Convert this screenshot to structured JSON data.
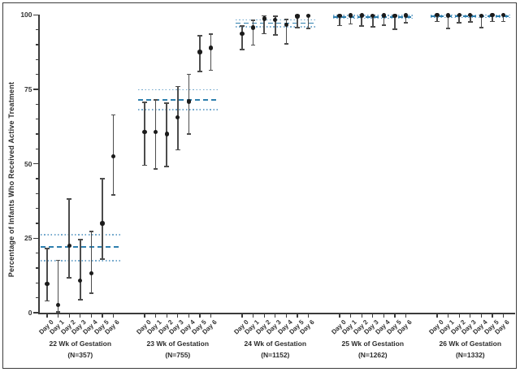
{
  "chart_data": {
    "type": "scatter",
    "title": "",
    "xlabel": "",
    "ylabel": "Percentage of Infants Who Received Active Treatment",
    "ylim": [
      0,
      100
    ],
    "yticks": [
      0,
      25,
      50,
      75,
      100
    ],
    "y_minor_tick_step": 5,
    "grid": false,
    "legend": "none",
    "day_labels": [
      "Day 0",
      "Day 1",
      "Day 2",
      "Day 3",
      "Day 4",
      "Day 5",
      "Day 6"
    ],
    "colors": {
      "overall_dashed": "#2e7fae",
      "ci_dotted": "#74a9cd",
      "errorbar": "#4d4d4d",
      "point": "#1b1b1b",
      "axis": "#3b3b3b"
    },
    "groups": [
      {
        "label": "22 Wk of Gestation",
        "n_label": "(N=357)",
        "overall": 22.0,
        "overall_ci": [
          17.5,
          26.2
        ],
        "values": [
          9.7,
          2.6,
          22.5,
          10.7,
          13.2,
          30.0,
          52.5
        ],
        "ci_low": [
          4.0,
          0.3,
          11.8,
          4.4,
          6.5,
          18.0,
          39.5
        ],
        "ci_high": [
          21.5,
          17.6,
          38.2,
          24.6,
          27.3,
          45.0,
          66.4
        ]
      },
      {
        "label": "23 Wk of Gestation",
        "n_label": "(N=755)",
        "overall": 71.5,
        "overall_ci": [
          68.2,
          74.8
        ],
        "values": [
          60.6,
          60.6,
          60.0,
          65.6,
          70.9,
          87.5,
          88.9
        ],
        "ci_low": [
          49.5,
          48.2,
          49.1,
          54.7,
          60.0,
          81.0,
          81.4
        ],
        "ci_high": [
          70.6,
          71.4,
          70.4,
          75.9,
          80.0,
          93.0,
          93.6
        ]
      },
      {
        "label": "24 Wk of Gestation",
        "n_label": "(N=1152)",
        "overall": 97.2,
        "overall_ci": [
          96.0,
          98.3
        ],
        "values": [
          93.7,
          95.7,
          98.7,
          98.3,
          96.6,
          99.5,
          99.6
        ],
        "ci_low": [
          88.3,
          89.8,
          93.7,
          93.3,
          90.3,
          95.7,
          95.5
        ],
        "ci_high": [
          96.2,
          98.1,
          99.7,
          99.6,
          98.5,
          99.9,
          99.9
        ]
      },
      {
        "label": "25 Wk of Gestation",
        "n_label": "(N=1262)",
        "overall": 99.3,
        "overall_ci": [
          98.8,
          99.8
        ],
        "values": [
          99.6,
          99.8,
          99.8,
          99.7,
          99.8,
          99.6,
          99.8
        ],
        "ci_low": [
          96.4,
          96.9,
          96.3,
          96.0,
          96.6,
          95.1,
          97.4
        ],
        "ci_high": [
          99.9,
          100,
          100,
          99.9,
          100,
          99.9,
          100
        ]
      },
      {
        "label": "26 Wk of Gestation",
        "n_label": "(N=1332)",
        "overall": 99.5,
        "overall_ci": [
          99.1,
          99.9
        ],
        "values": [
          99.9,
          99.8,
          99.9,
          99.9,
          99.7,
          99.9,
          99.9
        ],
        "ci_low": [
          97.8,
          95.5,
          97.4,
          97.6,
          95.7,
          97.8,
          97.8
        ],
        "ci_high": [
          100,
          100,
          100,
          100,
          100,
          100,
          100
        ]
      }
    ]
  }
}
